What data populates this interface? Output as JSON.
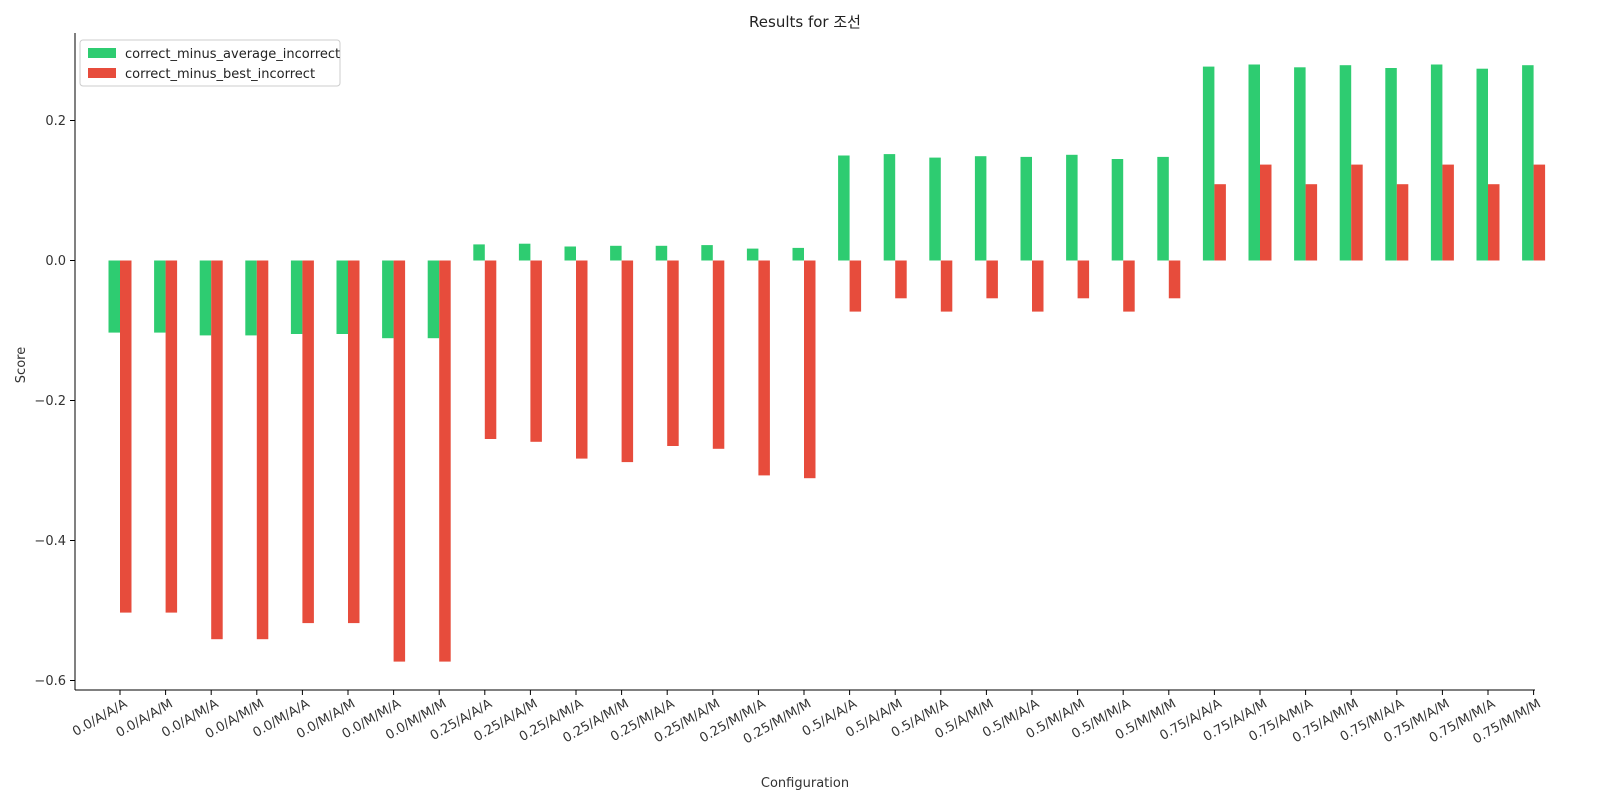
{
  "chart_data": {
    "type": "bar",
    "title": "Results for 조선",
    "xlabel": "Configuration",
    "ylabel": "Score",
    "ylim": [
      -0.62,
      0.33
    ],
    "yticks": [
      -0.6,
      -0.4,
      -0.2,
      0.0,
      0.2
    ],
    "ytick_labels": [
      "−0.6",
      "−0.4",
      "−0.2",
      "0.0",
      "0.2"
    ],
    "legend_position": "top-left",
    "grid": false,
    "categories": [
      "0.0/A/A/A",
      "0.0/A/A/M",
      "0.0/A/M/A",
      "0.0/A/M/M",
      "0.0/M/A/A",
      "0.0/M/A/M",
      "0.0/M/M/A",
      "0.0/M/M/M",
      "0.25/A/A/A",
      "0.25/A/A/M",
      "0.25/A/M/A",
      "0.25/A/M/M",
      "0.25/M/A/A",
      "0.25/M/A/M",
      "0.25/M/M/A",
      "0.25/M/M/M",
      "0.5/A/A/A",
      "0.5/A/A/M",
      "0.5/A/M/A",
      "0.5/A/M/M",
      "0.5/M/A/A",
      "0.5/M/A/M",
      "0.5/M/M/A",
      "0.5/M/M/M",
      "0.75/A/A/A",
      "0.75/A/A/M",
      "0.75/A/M/A",
      "0.75/A/M/M",
      "0.75/M/A/A",
      "0.75/M/A/M",
      "0.75/M/M/A",
      "0.75/M/M/M"
    ],
    "series": [
      {
        "name": "correct_minus_average_incorrect",
        "color": "#2ecc71",
        "values": [
          -0.103,
          -0.103,
          -0.107,
          -0.107,
          -0.105,
          -0.105,
          -0.111,
          -0.111,
          0.023,
          0.024,
          0.02,
          0.021,
          0.021,
          0.022,
          0.017,
          0.018,
          0.15,
          0.152,
          0.147,
          0.149,
          0.148,
          0.151,
          0.145,
          0.148,
          0.277,
          0.28,
          0.276,
          0.279,
          0.275,
          0.28,
          0.274,
          0.279
        ]
      },
      {
        "name": "correct_minus_best_incorrect",
        "color": "#e74c3c",
        "values": [
          -0.503,
          -0.503,
          -0.541,
          -0.541,
          -0.518,
          -0.518,
          -0.573,
          -0.573,
          -0.255,
          -0.259,
          -0.283,
          -0.288,
          -0.265,
          -0.269,
          -0.307,
          -0.311,
          -0.073,
          -0.054,
          -0.073,
          -0.054,
          -0.073,
          -0.054,
          -0.073,
          -0.054,
          0.109,
          0.137,
          0.109,
          0.137,
          0.109,
          0.137,
          0.109,
          0.137
        ]
      }
    ]
  }
}
